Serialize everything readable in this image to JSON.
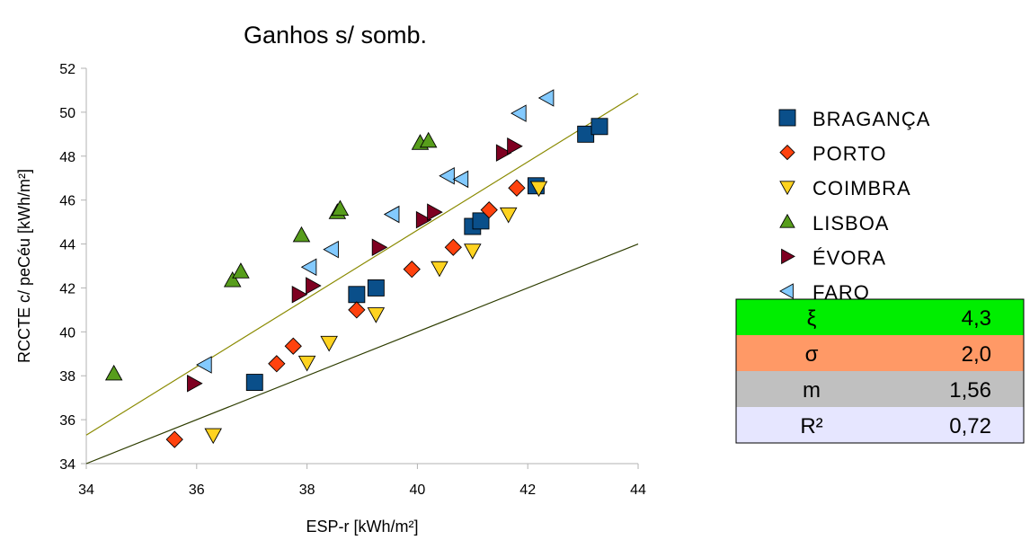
{
  "chart_data": {
    "type": "scatter",
    "title": "Ganhos s/ somb.",
    "xlabel": "ESP-r [kWh/m²]",
    "ylabel": "RCCTE c/ peCéu [kWh/m²]",
    "xlim": [
      34,
      44
    ],
    "ylim": [
      34,
      52
    ],
    "xticks": [
      "34",
      "36",
      "38",
      "40",
      "42",
      "44"
    ],
    "yticks": [
      "34",
      "36",
      "38",
      "40",
      "42",
      "44",
      "46",
      "48",
      "50",
      "52"
    ],
    "grid": false,
    "legend": "right",
    "series": [
      {
        "name": "BRAGANÇA",
        "marker": "square",
        "color": "#0a4f8a",
        "points": [
          [
            37.05,
            37.7
          ],
          [
            38.9,
            41.7
          ],
          [
            39.25,
            42.0
          ],
          [
            41.0,
            44.8
          ],
          [
            41.15,
            45.05
          ],
          [
            42.15,
            46.65
          ],
          [
            43.05,
            49.0
          ],
          [
            43.3,
            49.35
          ]
        ]
      },
      {
        "name": "PORTO",
        "marker": "diamond",
        "color": "#ff420e",
        "points": [
          [
            35.6,
            35.1
          ],
          [
            37.45,
            38.55
          ],
          [
            37.75,
            39.35
          ],
          [
            38.9,
            41.0
          ],
          [
            39.9,
            42.85
          ],
          [
            40.65,
            43.85
          ],
          [
            41.3,
            45.55
          ],
          [
            41.8,
            46.55
          ]
        ]
      },
      {
        "name": "COIMBRA",
        "marker": "triangle-down",
        "color": "#ffd320",
        "points": [
          [
            36.3,
            35.3
          ],
          [
            38.0,
            38.6
          ],
          [
            38.4,
            39.5
          ],
          [
            39.25,
            40.8
          ],
          [
            40.4,
            42.9
          ],
          [
            41.0,
            43.7
          ],
          [
            41.65,
            45.35
          ],
          [
            42.2,
            46.55
          ]
        ]
      },
      {
        "name": "LISBOA",
        "marker": "triangle-up",
        "color": "#579d1c",
        "points": [
          [
            34.5,
            38.1
          ],
          [
            36.65,
            42.35
          ],
          [
            36.8,
            42.75
          ],
          [
            37.9,
            44.4
          ],
          [
            38.55,
            45.45
          ],
          [
            38.6,
            45.6
          ],
          [
            40.05,
            48.6
          ],
          [
            40.2,
            48.7
          ]
        ]
      },
      {
        "name": "ÉVORA",
        "marker": "triangle-right",
        "color": "#7e0021",
        "points": [
          [
            35.95,
            37.65
          ],
          [
            37.85,
            41.7
          ],
          [
            38.1,
            42.1
          ],
          [
            39.3,
            43.85
          ],
          [
            40.1,
            45.1
          ],
          [
            40.3,
            45.45
          ],
          [
            41.55,
            48.15
          ],
          [
            41.75,
            48.45
          ]
        ]
      },
      {
        "name": "FARO",
        "marker": "triangle-left",
        "color": "#83caff",
        "points": [
          [
            36.15,
            38.5
          ],
          [
            38.05,
            42.95
          ],
          [
            38.45,
            43.75
          ],
          [
            39.55,
            45.35
          ],
          [
            40.55,
            47.1
          ],
          [
            40.8,
            46.95
          ],
          [
            41.85,
            49.95
          ],
          [
            42.35,
            50.65
          ]
        ]
      }
    ],
    "lines": [
      {
        "name": "fit",
        "color": "#8a8a00",
        "points": [
          [
            34,
            35.3
          ],
          [
            44,
            50.85
          ]
        ]
      },
      {
        "name": "reference",
        "color": "#2e3d00",
        "points": [
          [
            34,
            34.0
          ],
          [
            44,
            44.0
          ]
        ]
      }
    ]
  },
  "stats": [
    {
      "symbol": "ξ",
      "value": "4,3",
      "bg": "#00ee00"
    },
    {
      "symbol": "σ",
      "value": "2,0",
      "bg": "#ff9966"
    },
    {
      "symbol": "m",
      "value": "1,56",
      "bg": "#c0c0c0"
    },
    {
      "symbol": "R²",
      "value": "0,72",
      "bg": "#e6e6ff"
    }
  ]
}
